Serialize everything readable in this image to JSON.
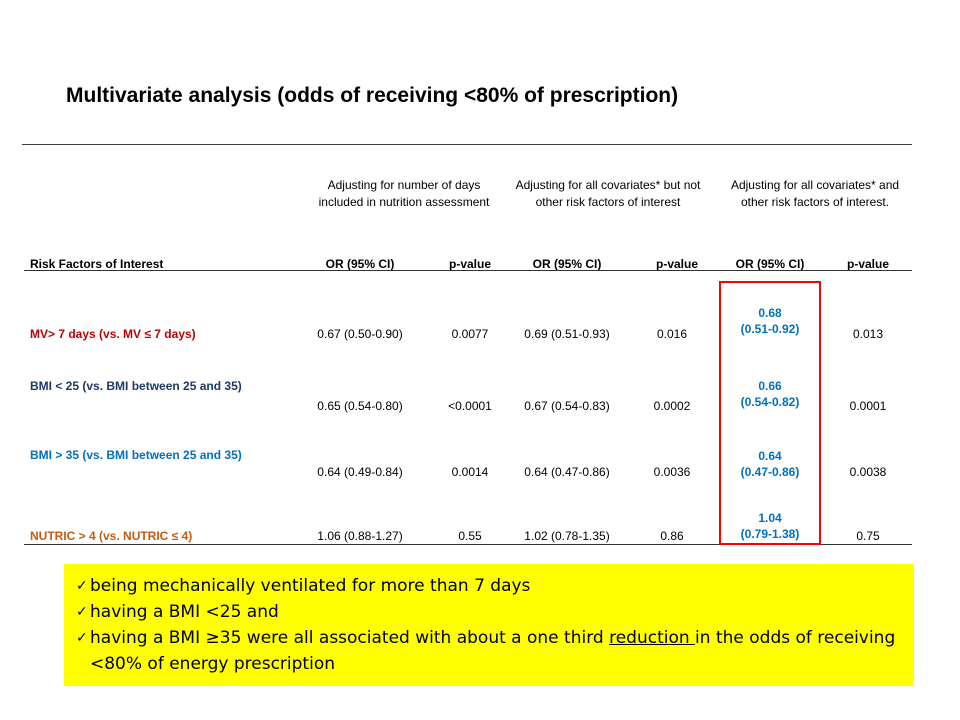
{
  "slide": {
    "title": "Multivariate analysis (odds of receiving <80% of prescription)"
  },
  "table": {
    "group_headers": [
      "Adjusting for number of days included in nutrition assessment",
      "Adjusting for all covariates* but not other risk factors of interest",
      "Adjusting for all covariates* and other risk factors of interest."
    ],
    "column_headers": [
      "Risk Factors of Interest",
      "OR (95% CI)",
      "p-value",
      "OR (95% CI)",
      "p-value",
      "OR (95% CI)",
      "p-value"
    ],
    "rows": [
      {
        "label": "MV> 7 days (vs. MV ≤ 7 days)",
        "or1": "0.67 (0.50-0.90)",
        "p1": "0.0077",
        "or2": "0.69 (0.51-0.93)",
        "p2": "0.016",
        "or3_value": "0.68",
        "or3_ci": "(0.51-0.92)",
        "p3": "0.013",
        "label_color": "#c00000"
      },
      {
        "label": "BMI < 25 (vs. BMI between 25 and 35)",
        "or1": "0.65 (0.54-0.80)",
        "p1": "<0.0001",
        "or2": "0.67 (0.54-0.83)",
        "p2": "0.0002",
        "or3_value": "0.66",
        "or3_ci": "(0.54-0.82)",
        "p3": "0.0001",
        "label_color": "#1f3864"
      },
      {
        "label": "BMI > 35 (vs. BMI between 25 and 35)",
        "or1": "0.64 (0.49-0.84)",
        "p1": "0.0014",
        "or2": "0.64 (0.47-0.86)",
        "p2": "0.0036",
        "or3_value": "0.64",
        "or3_ci": "(0.47-0.86)",
        "p3": "0.0038",
        "label_color": "#0070c0"
      },
      {
        "label": "NUTRIC > 4 (vs. NUTRIC ≤ 4)",
        "or1": "1.06 (0.88-1.27)",
        "p1": "0.55",
        "or2": "1.02 (0.78-1.35)",
        "p2": "0.86",
        "or3_value": "1.04",
        "or3_ci": "(0.79-1.38)",
        "p3": "0.75",
        "label_color": "#c55a11"
      }
    ]
  },
  "callout": {
    "background": "#ffff00",
    "icon": "check-icon",
    "lines": [
      "being mechanically ventilated for more than 7 days",
      "having a BMI <25 and"
    ],
    "last_line_before": "having a BMI ≥35 were all associated with about a one third ",
    "last_line_emph": "reduction ",
    "last_line_after": "in the odds of receiving <80% of energy prescription"
  },
  "colors": {
    "highlight_box": "#ff0000",
    "or3_text": "#0070c0"
  }
}
